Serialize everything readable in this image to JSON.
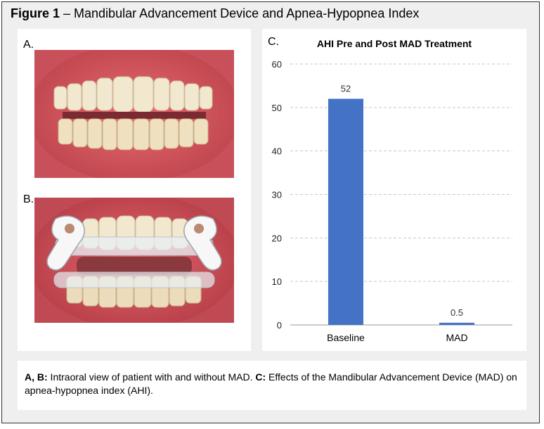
{
  "figure": {
    "label": "Figure 1",
    "title": " – Mandibular Advancement Device and Apnea-Hypopnea Index"
  },
  "panels": {
    "a_label": "A.",
    "b_label": "B.",
    "c_label": "C."
  },
  "caption": {
    "part1_bold": "A, B:",
    "part1_text": " Intraoral view of patient with and without MAD. ",
    "part2_bold": "C:",
    "part2_text": " Effects of the Mandibular Advancement Device (MAD) on apnea-hypopnea index (AHI)."
  },
  "colors": {
    "bar": "#4472c4",
    "gum": "#d9535c",
    "tooth": "#f1e6cc",
    "device": "#e6edf1"
  },
  "chart_data": {
    "type": "bar",
    "title": "AHI Pre and Post MAD Treatment",
    "categories": [
      "Baseline",
      "MAD"
    ],
    "values": [
      52,
      0.5
    ],
    "value_labels": [
      "52",
      "0.5"
    ],
    "xlabel": "",
    "ylabel": "",
    "ylim": [
      0,
      60
    ],
    "yticks": [
      0,
      10,
      20,
      30,
      40,
      50,
      60
    ],
    "ytick_labels": [
      "0",
      "10",
      "20",
      "30",
      "40",
      "50",
      "60"
    ],
    "grid": true,
    "legend": "none"
  }
}
